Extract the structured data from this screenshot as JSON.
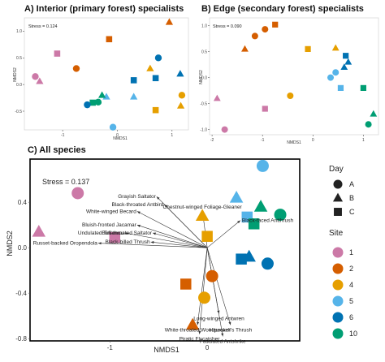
{
  "colors": {
    "1": "#cc79a7",
    "2": "#d55e00",
    "4": "#e69f00",
    "5": "#56b4e9",
    "6": "#0072b2",
    "10": "#009e73"
  },
  "shapes": {
    "A": "circle",
    "B": "triangle",
    "C": "square"
  },
  "chart_data": [
    {
      "type": "scatter",
      "title": "A) Interior (primary forest) specialists",
      "stress_label": "Stress = 0.124",
      "xlabel": "NMDS1",
      "ylabel": "NMDS2",
      "xlim": [
        -1.7,
        1.3
      ],
      "ylim": [
        -0.85,
        1.25
      ],
      "xticks": [
        "-1",
        "0",
        "1"
      ],
      "yticks": [
        "1.0",
        "0.5",
        "0.0",
        "-0.5"
      ],
      "points": [
        {
          "x": 0.95,
          "y": 1.17,
          "site": "2",
          "day": "B"
        },
        {
          "x": -0.15,
          "y": 0.85,
          "site": "2",
          "day": "C"
        },
        {
          "x": -1.1,
          "y": 0.58,
          "site": "1",
          "day": "C"
        },
        {
          "x": 0.75,
          "y": 0.5,
          "site": "6",
          "day": "A"
        },
        {
          "x": 0.6,
          "y": 0.3,
          "site": "4",
          "day": "B"
        },
        {
          "x": -0.75,
          "y": 0.3,
          "site": "2",
          "day": "A"
        },
        {
          "x": 1.15,
          "y": 0.2,
          "site": "6",
          "day": "B"
        },
        {
          "x": -1.5,
          "y": 0.15,
          "site": "1",
          "day": "A"
        },
        {
          "x": -1.42,
          "y": 0.06,
          "site": "1",
          "day": "B"
        },
        {
          "x": 0.7,
          "y": 0.12,
          "site": "6",
          "day": "C"
        },
        {
          "x": 0.3,
          "y": 0.08,
          "site": "6",
          "day": "C"
        },
        {
          "x": 1.18,
          "y": -0.2,
          "site": "4",
          "day": "A"
        },
        {
          "x": -0.2,
          "y": -0.23,
          "site": "5",
          "day": "B"
        },
        {
          "x": 0.3,
          "y": -0.23,
          "site": "5",
          "day": "B"
        },
        {
          "x": -0.28,
          "y": -0.2,
          "site": "10",
          "day": "B"
        },
        {
          "x": -0.35,
          "y": -0.33,
          "site": "10",
          "day": "A"
        },
        {
          "x": -0.45,
          "y": -0.34,
          "site": "10",
          "day": "C"
        },
        {
          "x": -0.55,
          "y": -0.38,
          "site": "6",
          "day": "A"
        },
        {
          "x": 1.16,
          "y": -0.4,
          "site": "4",
          "day": "B"
        },
        {
          "x": 0.7,
          "y": -0.48,
          "site": "4",
          "day": "C"
        },
        {
          "x": -0.08,
          "y": -0.8,
          "site": "5",
          "day": "A"
        }
      ]
    },
    {
      "type": "scatter",
      "title": "B) Edge (secondary forest) specialists",
      "stress_label": "Stress = 0.090",
      "xlabel": "NMDS1",
      "ylabel": "NMDS2",
      "xlim": [
        -2.05,
        1.3
      ],
      "ylim": [
        -1.1,
        1.15
      ],
      "xticks": [
        "-2",
        "-1",
        "0",
        "1"
      ],
      "yticks": [
        "1.0",
        "0.5",
        "0.0",
        "-0.5",
        "-1.0"
      ],
      "points": [
        {
          "x": -0.75,
          "y": 1.02,
          "site": "2",
          "day": "C"
        },
        {
          "x": -0.95,
          "y": 0.93,
          "site": "2",
          "day": "A"
        },
        {
          "x": -1.15,
          "y": 0.8,
          "site": "2",
          "day": "A"
        },
        {
          "x": -1.35,
          "y": 0.55,
          "site": "2",
          "day": "B"
        },
        {
          "x": -0.1,
          "y": 0.55,
          "site": "4",
          "day": "C"
        },
        {
          "x": 0.45,
          "y": 0.57,
          "site": "4",
          "day": "B"
        },
        {
          "x": 0.65,
          "y": 0.42,
          "site": "6",
          "day": "C"
        },
        {
          "x": 0.7,
          "y": 0.3,
          "site": "6",
          "day": "B"
        },
        {
          "x": 0.62,
          "y": 0.2,
          "site": "6",
          "day": "B"
        },
        {
          "x": 0.45,
          "y": 0.1,
          "site": "5",
          "day": "A"
        },
        {
          "x": 0.35,
          "y": 0.0,
          "site": "5",
          "day": "A"
        },
        {
          "x": 0.55,
          "y": -0.2,
          "site": "5",
          "day": "C"
        },
        {
          "x": 1.0,
          "y": -0.2,
          "site": "10",
          "day": "C"
        },
        {
          "x": -0.45,
          "y": -0.35,
          "site": "4",
          "day": "A"
        },
        {
          "x": -1.9,
          "y": -0.4,
          "site": "1",
          "day": "B"
        },
        {
          "x": -0.95,
          "y": -0.6,
          "site": "1",
          "day": "C"
        },
        {
          "x": 1.2,
          "y": -0.7,
          "site": "10",
          "day": "B"
        },
        {
          "x": 1.1,
          "y": -0.9,
          "site": "10",
          "day": "A"
        },
        {
          "x": -1.75,
          "y": -1.0,
          "site": "1",
          "day": "A"
        }
      ]
    },
    {
      "type": "scatter",
      "title": "C) All species",
      "stress_label": "Stress = 0.137",
      "xlabel": "NMDS1",
      "ylabel": "NMDS2",
      "xlim": [
        -1.82,
        0.95
      ],
      "ylim": [
        -0.82,
        0.78
      ],
      "xticks": [
        "-1",
        "0"
      ],
      "yticks": [
        "0.4",
        "0.0",
        "-0.4",
        "-0.8"
      ],
      "points": [
        {
          "x": 0.57,
          "y": 0.72,
          "site": "5",
          "day": "A"
        },
        {
          "x": -1.33,
          "y": 0.48,
          "site": "1",
          "day": "A"
        },
        {
          "x": 0.3,
          "y": 0.44,
          "site": "5",
          "day": "B"
        },
        {
          "x": 0.55,
          "y": 0.36,
          "site": "10",
          "day": "B"
        },
        {
          "x": -0.05,
          "y": 0.28,
          "site": "4",
          "day": "B"
        },
        {
          "x": 0.75,
          "y": 0.29,
          "site": "10",
          "day": "A"
        },
        {
          "x": 0.41,
          "y": 0.27,
          "site": "5",
          "day": "C"
        },
        {
          "x": -1.73,
          "y": 0.14,
          "site": "1",
          "day": "B"
        },
        {
          "x": 0.48,
          "y": 0.21,
          "site": "10",
          "day": "C"
        },
        {
          "x": -0.95,
          "y": 0.09,
          "site": "1",
          "day": "C"
        },
        {
          "x": 0.0,
          "y": 0.1,
          "site": "4",
          "day": "C"
        },
        {
          "x": 0.43,
          "y": -0.08,
          "site": "6",
          "day": "B"
        },
        {
          "x": 0.35,
          "y": -0.1,
          "site": "6",
          "day": "C"
        },
        {
          "x": 0.62,
          "y": -0.14,
          "site": "6",
          "day": "A"
        },
        {
          "x": 0.05,
          "y": -0.25,
          "site": "2",
          "day": "A"
        },
        {
          "x": -0.22,
          "y": -0.32,
          "site": "2",
          "day": "C"
        },
        {
          "x": -0.03,
          "y": -0.44,
          "site": "4",
          "day": "A"
        },
        {
          "x": -0.15,
          "y": -0.68,
          "site": "2",
          "day": "B"
        }
      ],
      "vectors": [
        {
          "label": "Grayish Saltator",
          "x": -0.52,
          "y": 0.45
        },
        {
          "label": "Black-throated Antbird",
          "x": -0.44,
          "y": 0.38
        },
        {
          "label": "White-winged Becard",
          "x": -0.72,
          "y": 0.32
        },
        {
          "label": "Chestnut-winged Foliage-Gleaner",
          "x": -0.05,
          "y": 0.33
        },
        {
          "label": "Black-faced Antthrush",
          "x": 0.34,
          "y": 0.24
        },
        {
          "label": "Bluish-fronted Jacamar",
          "x": -0.72,
          "y": 0.2
        },
        {
          "label": "Buff-throated Saltator",
          "x": -0.56,
          "y": 0.13
        },
        {
          "label": "Undulated Tinamou",
          "x": -0.85,
          "y": 0.13
        },
        {
          "label": "Russet-backed Oropendola",
          "x": -1.12,
          "y": 0.04
        },
        {
          "label": "Black-billed Thrush",
          "x": -0.58,
          "y": 0.05
        },
        {
          "label": "Long-winged Antwren",
          "x": 0.12,
          "y": -0.58
        },
        {
          "label": "White-throated Woodpecker",
          "x": -0.1,
          "y": -0.68
        },
        {
          "label": "Hauxwell's Thrush",
          "x": 0.24,
          "y": -0.68
        },
        {
          "label": "Piratic Flycatcher",
          "x": -0.08,
          "y": -0.76
        },
        {
          "label": "Fasciated Antshrike",
          "x": 0.16,
          "y": -0.78
        }
      ]
    }
  ],
  "legend": {
    "day_title": "Day",
    "day_items": [
      {
        "label": "A",
        "shape": "circle"
      },
      {
        "label": "B",
        "shape": "triangle"
      },
      {
        "label": "C",
        "shape": "square"
      }
    ],
    "site_title": "Site",
    "site_items": [
      "1",
      "2",
      "4",
      "5",
      "6",
      "10"
    ]
  }
}
